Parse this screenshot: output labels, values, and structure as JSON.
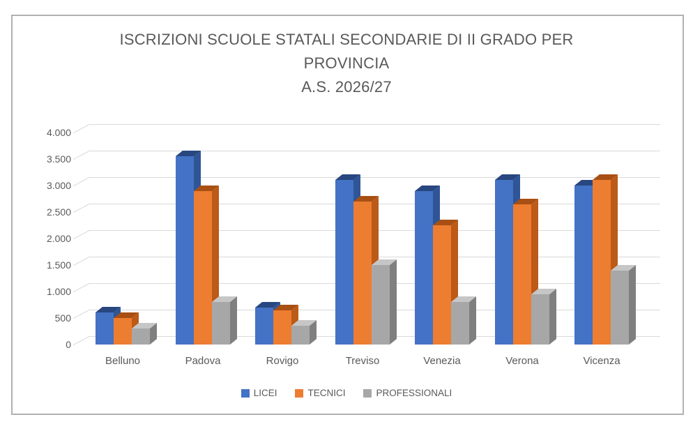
{
  "title": {
    "lines": [
      "ISCRIZIONI SCUOLE STATALI SECONDARIE DI II GRADO PER",
      "PROVINCIA",
      "A.S. 2026/27"
    ]
  },
  "chart_data": {
    "type": "bar",
    "style": "3d-clustered-column",
    "title": "ISCRIZIONI SCUOLE STATALI SECONDARIE DI II GRADO PER PROVINCIA A.S. 2026/27",
    "categories": [
      "Belluno",
      "Padova",
      "Rovigo",
      "Treviso",
      "Venezia",
      "Verona",
      "Vicenza"
    ],
    "series": [
      {
        "name": "LICEI",
        "color": "#4472C4",
        "color_side": "#2F5597",
        "color_top": "#28467F",
        "values": [
          600,
          3550,
          700,
          3100,
          2900,
          3100,
          3000
        ]
      },
      {
        "name": "TECNICI",
        "color": "#ED7D31",
        "color_side": "#BC5A17",
        "color_top": "#A84F13",
        "values": [
          500,
          2900,
          650,
          2700,
          2250,
          2650,
          3100
        ]
      },
      {
        "name": "PROFESSIONALI",
        "color": "#A7A7A7",
        "color_side": "#7F7F7F",
        "color_top": "#C6C6C6",
        "values": [
          300,
          800,
          350,
          1500,
          800,
          950,
          1400
        ]
      }
    ],
    "ylim": [
      0,
      4000
    ],
    "ytick_step": 500,
    "ytick_labels": [
      "0",
      "500",
      "1.000",
      "1.500",
      "2.000",
      "2.500",
      "3.000",
      "3.500",
      "4.000"
    ],
    "grid": true,
    "legend_position": "bottom"
  },
  "colors": {
    "axis_text": "#595959",
    "title_text": "#595959",
    "gridline": "#D9D9D9",
    "frame_border": "#B1B1B1",
    "background": "#FFFFFF"
  }
}
